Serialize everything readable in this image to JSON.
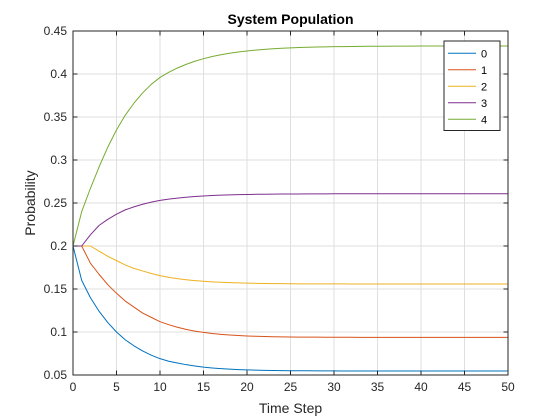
{
  "chart_data": {
    "type": "line",
    "title": "System Population",
    "xlabel": "Time Step",
    "ylabel": "Probability",
    "xlim": [
      0,
      50
    ],
    "ylim": [
      0.05,
      0.45
    ],
    "xticks": [
      0,
      5,
      10,
      15,
      20,
      25,
      30,
      35,
      40,
      45,
      50
    ],
    "yticks": [
      0.05,
      0.1,
      0.15,
      0.2,
      0.25,
      0.3,
      0.35,
      0.4,
      0.45
    ],
    "xtick_labels": [
      "0",
      "5",
      "10",
      "15",
      "20",
      "25",
      "30",
      "35",
      "40",
      "45",
      "50"
    ],
    "ytick_labels": [
      "0.05",
      "0.1",
      "0.15",
      "0.2",
      "0.25",
      "0.3",
      "0.35",
      "0.4",
      "0.45"
    ],
    "grid": true,
    "legend_position": "top-right",
    "x": [
      0,
      1,
      2,
      3,
      4,
      5,
      6,
      7,
      8,
      9,
      10,
      11,
      12,
      13,
      14,
      15,
      16,
      17,
      18,
      19,
      20,
      21,
      22,
      23,
      24,
      25,
      26,
      27,
      28,
      29,
      30,
      31,
      32,
      33,
      34,
      35,
      36,
      37,
      38,
      39,
      40,
      41,
      42,
      43,
      44,
      45,
      46,
      47,
      48,
      49,
      50
    ],
    "series": [
      {
        "name": "0",
        "color": "#0072BD",
        "values": [
          0.2,
          0.16,
          0.14,
          0.124,
          0.111,
          0.1,
          0.091,
          0.084,
          0.078,
          0.073,
          0.069,
          0.066,
          0.064,
          0.062,
          0.0605,
          0.0592,
          0.0582,
          0.0574,
          0.0568,
          0.0563,
          0.0559,
          0.0556,
          0.0554,
          0.0552,
          0.0551,
          0.055,
          0.0549,
          0.0549,
          0.0548,
          0.0548,
          0.0548,
          0.0547,
          0.0547,
          0.0547,
          0.0547,
          0.0547,
          0.0547,
          0.0547,
          0.0547,
          0.0547,
          0.0547,
          0.0547,
          0.0547,
          0.0547,
          0.0547,
          0.0547,
          0.0547,
          0.0547,
          0.0547,
          0.0547,
          0.0547
        ]
      },
      {
        "name": "1",
        "color": "#D95319",
        "values": [
          0.2,
          0.2,
          0.18,
          0.167,
          0.155,
          0.145,
          0.136,
          0.129,
          0.122,
          0.117,
          0.112,
          0.1085,
          0.1055,
          0.103,
          0.101,
          0.0995,
          0.0983,
          0.0973,
          0.0965,
          0.0959,
          0.0954,
          0.095,
          0.0947,
          0.0945,
          0.0943,
          0.0942,
          0.0941,
          0.094,
          0.094,
          0.0939,
          0.0939,
          0.0939,
          0.0939,
          0.0938,
          0.0938,
          0.0938,
          0.0938,
          0.0938,
          0.0938,
          0.0938,
          0.0938,
          0.0938,
          0.0938,
          0.0938,
          0.0938,
          0.0938,
          0.0938,
          0.0938,
          0.0938,
          0.0938,
          0.0938
        ]
      },
      {
        "name": "2",
        "color": "#EDB120",
        "values": [
          0.2,
          0.2,
          0.2,
          0.194,
          0.188,
          0.183,
          0.178,
          0.174,
          0.171,
          0.168,
          0.1655,
          0.1635,
          0.162,
          0.1608,
          0.1598,
          0.159,
          0.1583,
          0.1578,
          0.1574,
          0.1571,
          0.1568,
          0.1566,
          0.1564,
          0.1563,
          0.1562,
          0.1561,
          0.156,
          0.156,
          0.1559,
          0.1559,
          0.1559,
          0.1559,
          0.1558,
          0.1558,
          0.1558,
          0.1558,
          0.1558,
          0.1558,
          0.1558,
          0.1558,
          0.1558,
          0.1558,
          0.1558,
          0.1558,
          0.1558,
          0.1558,
          0.1558,
          0.1558,
          0.1558,
          0.1558,
          0.1558
        ]
      },
      {
        "name": "3",
        "color": "#7E2F8E",
        "values": [
          0.2,
          0.2,
          0.213,
          0.224,
          0.231,
          0.237,
          0.242,
          0.2455,
          0.2485,
          0.251,
          0.253,
          0.2545,
          0.2557,
          0.2567,
          0.2575,
          0.2582,
          0.2587,
          0.2591,
          0.2594,
          0.2597,
          0.2599,
          0.2601,
          0.2602,
          0.2603,
          0.2604,
          0.2605,
          0.2605,
          0.2606,
          0.2606,
          0.2606,
          0.2607,
          0.2607,
          0.2607,
          0.2607,
          0.2607,
          0.2607,
          0.2607,
          0.2607,
          0.2607,
          0.2607,
          0.2607,
          0.2607,
          0.2607,
          0.2607,
          0.2607,
          0.2607,
          0.2607,
          0.2607,
          0.2607,
          0.2607,
          0.2607
        ]
      },
      {
        "name": "4",
        "color": "#77AC30",
        "values": [
          0.2,
          0.24,
          0.267,
          0.292,
          0.315,
          0.335,
          0.352,
          0.366,
          0.378,
          0.388,
          0.396,
          0.402,
          0.407,
          0.4112,
          0.4148,
          0.4178,
          0.4203,
          0.4224,
          0.4241,
          0.4256,
          0.4268,
          0.4278,
          0.4286,
          0.4293,
          0.4299,
          0.4304,
          0.4308,
          0.4311,
          0.4314,
          0.4316,
          0.4318,
          0.4319,
          0.432,
          0.4321,
          0.4322,
          0.4323,
          0.4323,
          0.4324,
          0.4324,
          0.4324,
          0.4325,
          0.4325,
          0.4325,
          0.4325,
          0.4325,
          0.4325,
          0.4326,
          0.4326,
          0.4326,
          0.4326,
          0.4326
        ]
      }
    ]
  }
}
